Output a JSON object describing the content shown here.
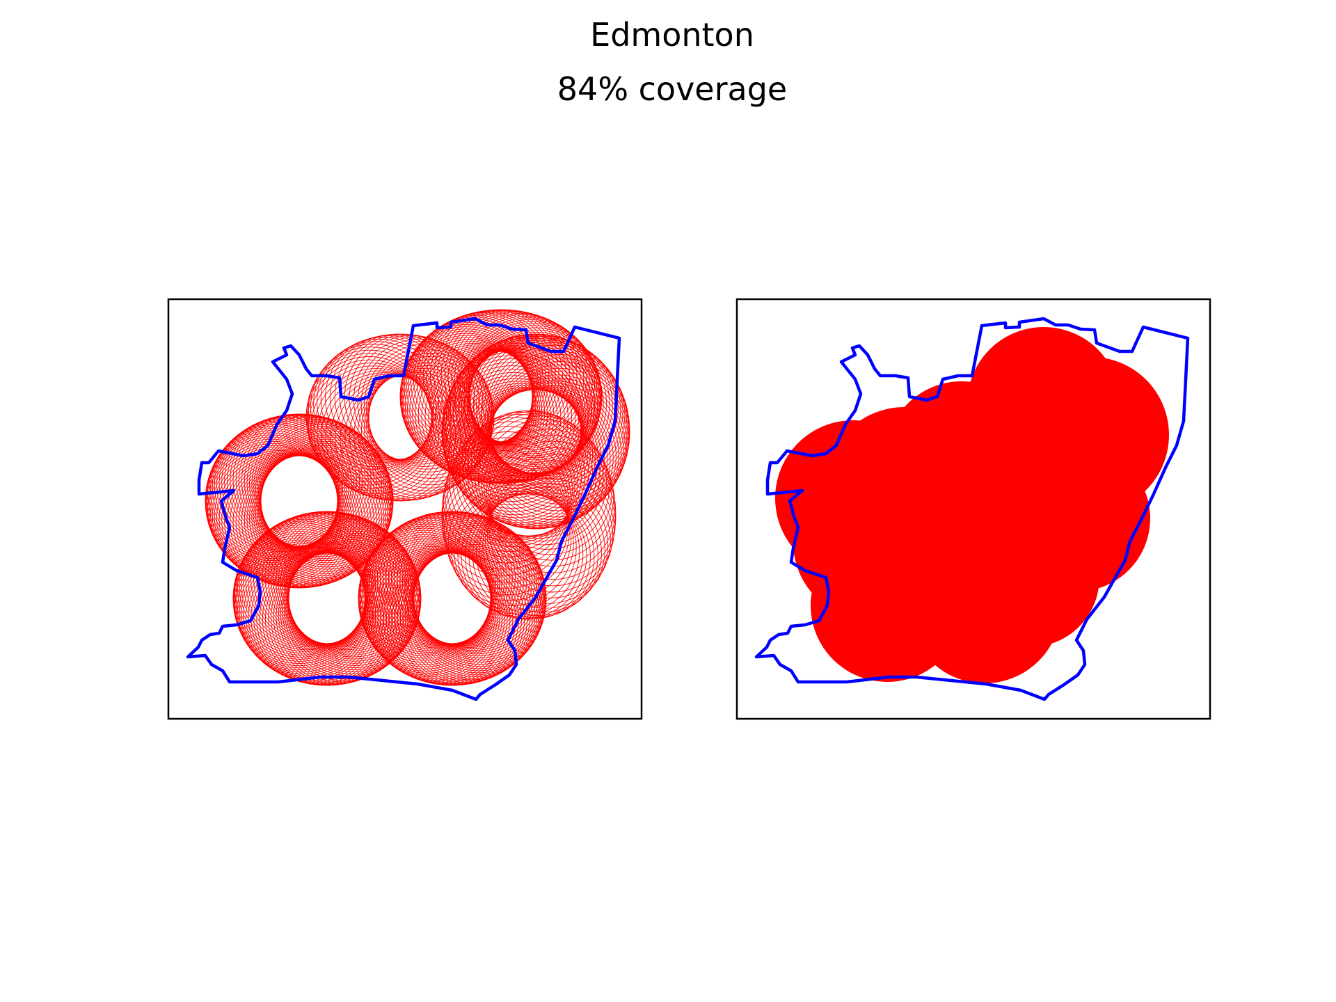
{
  "figure": {
    "title": "Edmonton",
    "subtitle": "84% coverage"
  },
  "colors": {
    "boundary": "#0000ff",
    "coverage": "#ff0000",
    "frame": "#000000",
    "background": "#ffffff"
  },
  "panels": [
    {
      "name": "panel-outline-circles",
      "style": "outline"
    },
    {
      "name": "panel-filled-union",
      "style": "filled"
    }
  ]
}
